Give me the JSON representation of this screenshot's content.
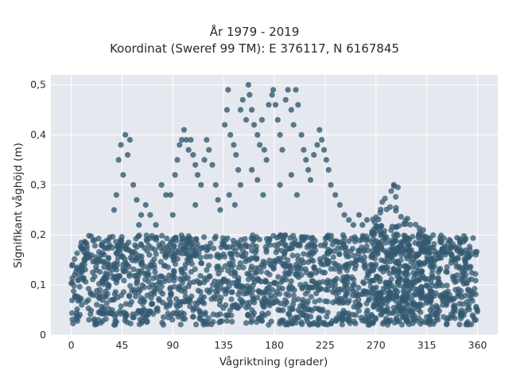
{
  "chart_data": {
    "type": "scatter",
    "title": "År 1979 - 2019",
    "subtitle": "Koordinat (Sweref 99 TM): E 376117, N 6167845",
    "xlabel": "Vågriktning (grader)",
    "ylabel": "Signifikant våghöjd (m)",
    "xlim": [
      -18,
      378
    ],
    "ylim": [
      0,
      0.52
    ],
    "xticks": [
      0,
      45,
      90,
      135,
      180,
      225,
      270,
      315,
      360
    ],
    "xtick_labels": [
      "0",
      "45",
      "90",
      "135",
      "180",
      "225",
      "270",
      "315",
      "360"
    ],
    "yticks": [
      0,
      0.1,
      0.2,
      0.3,
      0.4,
      0.5
    ],
    "ytick_labels": [
      "0",
      "0,1",
      "0,2",
      "0,3",
      "0,4",
      "0,5"
    ],
    "grid": true,
    "marker_color": "#335a70",
    "plot_background": "#e5e8ef",
    "dense_band": [
      {
        "x_from": 0,
        "x_to": 360,
        "y_from": 0.02,
        "y_to": 0.2
      },
      {
        "x_from": 265,
        "x_to": 290,
        "y_from": 0.02,
        "y_to": 0.32
      },
      {
        "x_from": 290,
        "x_to": 320,
        "y_from": 0.02,
        "y_to": 0.25
      }
    ],
    "points": [
      [
        40,
        0.28
      ],
      [
        42,
        0.35
      ],
      [
        44,
        0.38
      ],
      [
        48,
        0.4
      ],
      [
        50,
        0.36
      ],
      [
        52,
        0.39
      ],
      [
        46,
        0.32
      ],
      [
        38,
        0.25
      ],
      [
        55,
        0.3
      ],
      [
        58,
        0.27
      ],
      [
        62,
        0.24
      ],
      [
        66,
        0.26
      ],
      [
        70,
        0.24
      ],
      [
        75,
        0.22
      ],
      [
        80,
        0.3
      ],
      [
        84,
        0.28
      ],
      [
        88,
        0.28
      ],
      [
        92,
        0.32
      ],
      [
        94,
        0.35
      ],
      [
        96,
        0.38
      ],
      [
        98,
        0.39
      ],
      [
        100,
        0.41
      ],
      [
        102,
        0.39
      ],
      [
        104,
        0.37
      ],
      [
        106,
        0.39
      ],
      [
        108,
        0.36
      ],
      [
        110,
        0.34
      ],
      [
        112,
        0.32
      ],
      [
        115,
        0.3
      ],
      [
        118,
        0.35
      ],
      [
        120,
        0.39
      ],
      [
        122,
        0.37
      ],
      [
        125,
        0.34
      ],
      [
        128,
        0.3
      ],
      [
        130,
        0.27
      ],
      [
        136,
        0.42
      ],
      [
        138,
        0.45
      ],
      [
        139,
        0.49
      ],
      [
        141,
        0.4
      ],
      [
        144,
        0.38
      ],
      [
        146,
        0.36
      ],
      [
        148,
        0.33
      ],
      [
        150,
        0.45
      ],
      [
        152,
        0.47
      ],
      [
        155,
        0.43
      ],
      [
        157,
        0.5
      ],
      [
        158,
        0.48
      ],
      [
        160,
        0.45
      ],
      [
        162,
        0.42
      ],
      [
        165,
        0.4
      ],
      [
        167,
        0.38
      ],
      [
        169,
        0.43
      ],
      [
        171,
        0.37
      ],
      [
        173,
        0.35
      ],
      [
        175,
        0.46
      ],
      [
        178,
        0.48
      ],
      [
        179,
        0.49
      ],
      [
        181,
        0.46
      ],
      [
        183,
        0.43
      ],
      [
        185,
        0.4
      ],
      [
        187,
        0.37
      ],
      [
        190,
        0.47
      ],
      [
        192,
        0.49
      ],
      [
        195,
        0.45
      ],
      [
        197,
        0.42
      ],
      [
        199,
        0.49
      ],
      [
        201,
        0.46
      ],
      [
        204,
        0.4
      ],
      [
        206,
        0.37
      ],
      [
        208,
        0.35
      ],
      [
        210,
        0.33
      ],
      [
        212,
        0.31
      ],
      [
        215,
        0.36
      ],
      [
        218,
        0.38
      ],
      [
        220,
        0.41
      ],
      [
        222,
        0.39
      ],
      [
        224,
        0.37
      ],
      [
        226,
        0.35
      ],
      [
        228,
        0.33
      ],
      [
        230,
        0.3
      ],
      [
        234,
        0.28
      ],
      [
        238,
        0.26
      ],
      [
        242,
        0.24
      ],
      [
        246,
        0.23
      ],
      [
        250,
        0.22
      ],
      [
        255,
        0.24
      ],
      [
        258,
        0.22
      ],
      [
        262,
        0.23
      ],
      [
        150,
        0.3
      ],
      [
        160,
        0.33
      ],
      [
        165,
        0.31
      ],
      [
        170,
        0.28
      ],
      [
        185,
        0.3
      ],
      [
        195,
        0.32
      ],
      [
        200,
        0.28
      ],
      [
        140,
        0.28
      ],
      [
        145,
        0.26
      ],
      [
        132,
        0.25
      ],
      [
        110,
        0.26
      ],
      [
        90,
        0.24
      ],
      [
        60,
        0.22
      ]
    ]
  }
}
